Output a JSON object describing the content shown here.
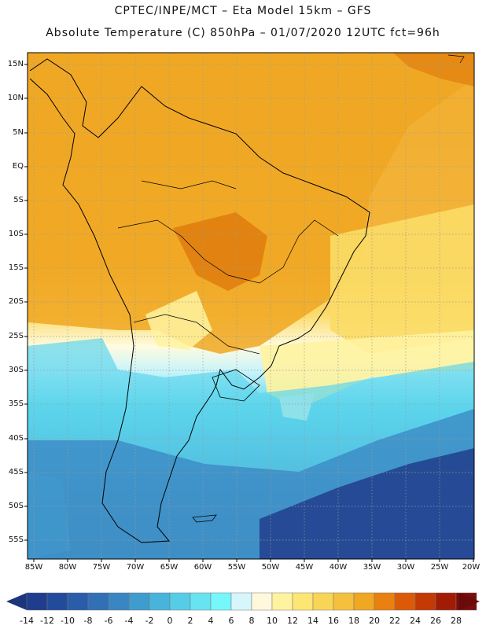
{
  "title_line1": "CPTEC/INPE/MCT –  Eta Model 15km – GFS",
  "title_line2": "Absolute Temperature (C) 850hPa – 01/07/2020 12UTC fct=96h",
  "lat_labels": [
    "15N",
    "10N",
    "5N",
    "EQ",
    "5S",
    "10S",
    "15S",
    "20S",
    "25S",
    "30S",
    "35S",
    "40S",
    "45S",
    "50S",
    "55S"
  ],
  "lon_labels": [
    "85W",
    "80W",
    "75W",
    "70W",
    "65W",
    "60W",
    "55W",
    "50W",
    "45W",
    "40W",
    "35W",
    "30W",
    "25W",
    "20W"
  ],
  "colorbar": {
    "labels": [
      "-14",
      "-12",
      "-10",
      "-8",
      "-6",
      "-4",
      "-2",
      "0",
      "2",
      "4",
      "6",
      "8",
      "10",
      "12",
      "14",
      "16",
      "18",
      "20",
      "22",
      "24",
      "26",
      "28"
    ],
    "colors": [
      "#1f3d8c",
      "#234b9c",
      "#2a5da9",
      "#3170b5",
      "#3a86c2",
      "#3f9ccf",
      "#48b4dc",
      "#55cde7",
      "#68e3f0",
      "#76f7fb",
      "#d6f6fb",
      "#fff8dc",
      "#fff3a0",
      "#fde674",
      "#f9d555",
      "#f4c03e",
      "#f0a722",
      "#e8810f",
      "#dc5a07",
      "#c43a05",
      "#a21c05",
      "#7a0c0c"
    ]
  },
  "colors": {
    "cold_dark": "#1f3d8c",
    "cold_mid": "#3a86c2",
    "cyan": "#4fd8ec",
    "pale": "#fffbe0",
    "yellow": "#fbdc66",
    "warm": "#f1a82b",
    "hot": "#e07e10"
  }
}
